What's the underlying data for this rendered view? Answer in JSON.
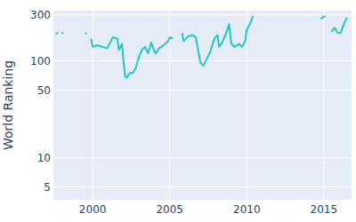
{
  "chart_data": {
    "type": "line",
    "y_label": "World Ranking",
    "log": "y",
    "grid": true,
    "color": "#1fc8c8",
    "xlim": [
      1997.45,
      2016.8
    ],
    "xticks": [
      2000,
      2005,
      2010,
      2015
    ],
    "ylim": [
      3.7,
      330
    ],
    "yticks": [
      5,
      10,
      50,
      100,
      300
    ],
    "x": [
      1997.6,
      1997.75,
      1997.85,
      1998.0,
      1998.1,
      1999.2,
      1999.5,
      1999.6,
      1999.75,
      1999.9,
      2000.0,
      2000.3,
      2000.6,
      2000.9,
      2001.0,
      2001.3,
      2001.6,
      2001.7,
      2001.9,
      2002.0,
      2002.1,
      2002.2,
      2002.4,
      2002.6,
      2002.8,
      2003.0,
      2003.2,
      2003.4,
      2003.6,
      2003.8,
      2004.0,
      2004.1,
      2004.3,
      2004.6,
      2004.9,
      2005.0,
      2005.2,
      2005.5,
      2005.8,
      2005.9,
      2006.2,
      2006.5,
      2006.7,
      2006.8,
      2007.0,
      2007.2,
      2007.4,
      2007.6,
      2007.9,
      2008.1,
      2008.2,
      2008.4,
      2008.7,
      2008.85,
      2009.0,
      2009.2,
      2009.5,
      2009.7,
      2009.9,
      2010.0,
      2010.2,
      2010.4,
      2012.0,
      2014.8,
      2014.9,
      2015.1,
      2015.3,
      2015.5,
      2015.7,
      2015.9,
      2016.1,
      2016.3,
      2016.5
    ],
    "values": [
      190,
      195,
      null,
      195,
      192,
      null,
      190,
      195,
      null,
      170,
      140,
      145,
      140,
      135,
      140,
      175,
      170,
      130,
      150,
      100,
      70,
      67,
      75,
      75,
      85,
      110,
      130,
      140,
      120,
      155,
      125,
      120,
      135,
      145,
      160,
      175,
      170,
      null,
      195,
      160,
      180,
      185,
      175,
      140,
      95,
      90,
      105,
      120,
      170,
      185,
      140,
      155,
      200,
      240,
      150,
      140,
      150,
      140,
      160,
      210,
      240,
      290,
      null,
      270,
      280,
      290,
      null,
      200,
      220,
      195,
      195,
      240,
      280
    ]
  }
}
